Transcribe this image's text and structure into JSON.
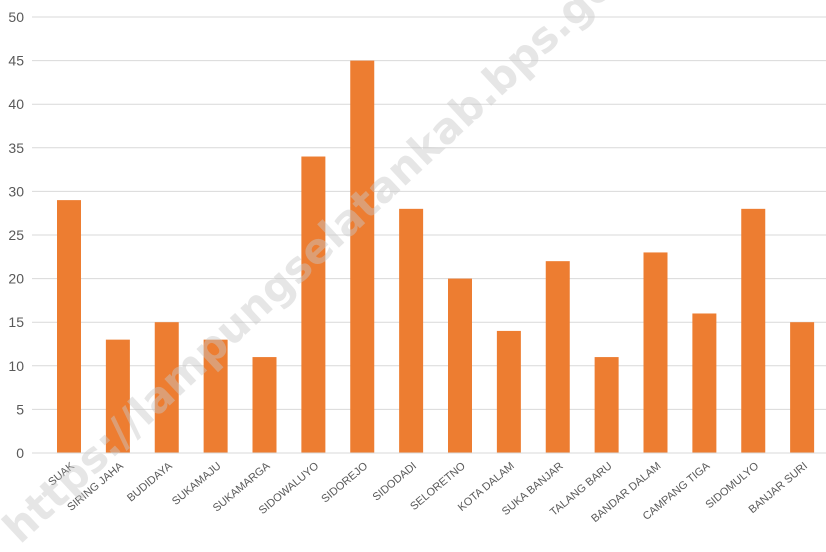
{
  "chart_data": {
    "type": "bar",
    "categories": [
      "SUAK",
      "SIRING JAHA",
      "BUDIDAYA",
      "SUKAMAJU",
      "SUKAMARGA",
      "SIDOWALUYO",
      "SIDOREJO",
      "SIDODADI",
      "SELORETNO",
      "KOTA DALAM",
      "SUKA BANJAR",
      "TALANG BARU",
      "BANDAR DALAM",
      "CAMPANG TIGA",
      "SIDOMULYO",
      "BANJAR SURI"
    ],
    "values": [
      29,
      13,
      15,
      13,
      11,
      34,
      45,
      28,
      20,
      14,
      22,
      11,
      23,
      16,
      28,
      15
    ],
    "ylim": [
      0,
      50
    ],
    "yticks": [
      0,
      5,
      10,
      15,
      20,
      25,
      30,
      35,
      40,
      45,
      50
    ],
    "grid": true,
    "bar_color": "#ed7d31",
    "watermark": "https://lampungselatankab.bps.go.id"
  }
}
